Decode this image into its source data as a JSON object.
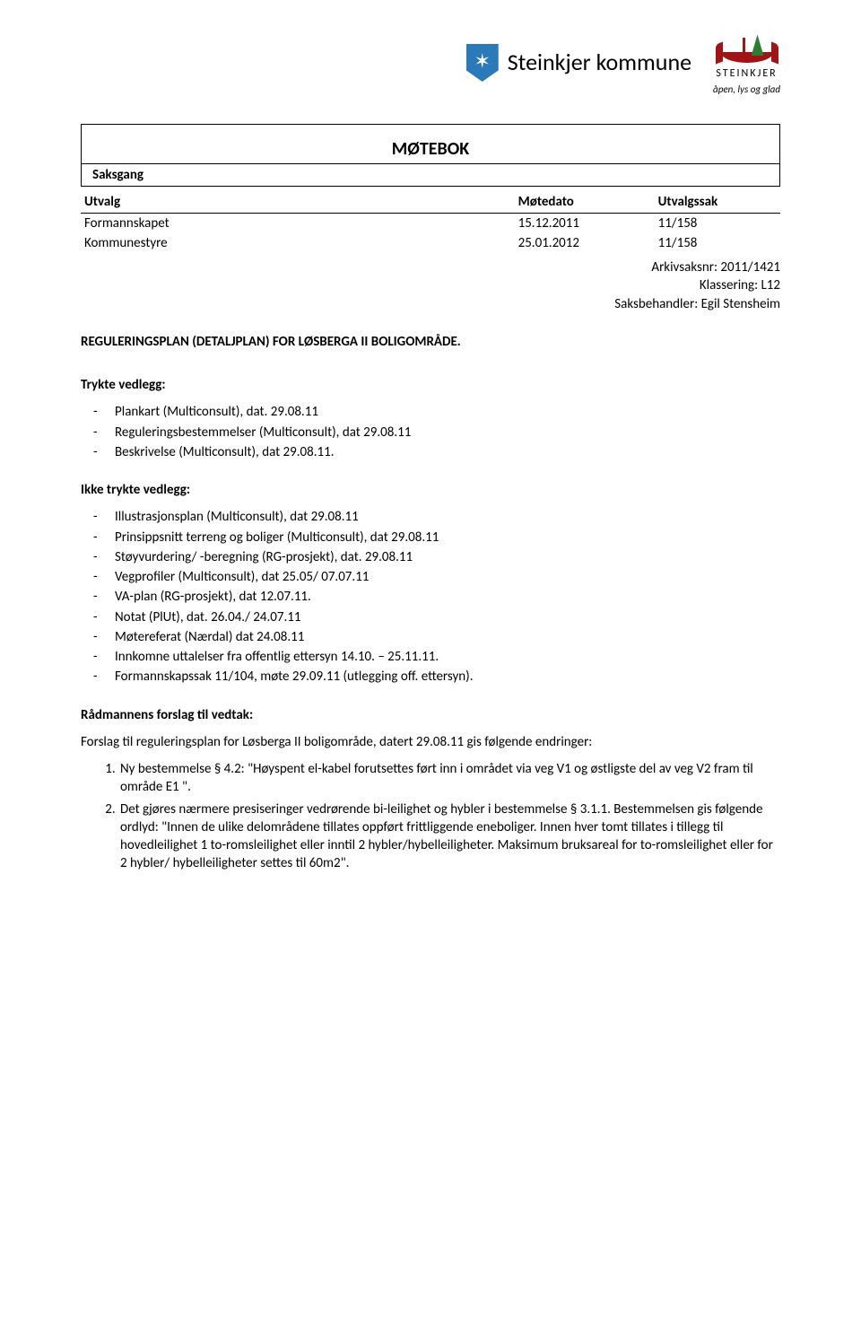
{
  "header": {
    "kommune_name": "Steinkjer kommune",
    "right_logo_title": "STEINKJER",
    "right_logo_slogan": "åpen, lys og glad"
  },
  "doc": {
    "title": "MØTEBOK",
    "subtitle": "Saksgang"
  },
  "meeting_table": {
    "headers": {
      "utvalg": "Utvalg",
      "dato": "Møtedato",
      "sak": "Utvalgssak"
    },
    "rows": [
      {
        "utvalg": "Formannskapet",
        "dato": "15.12.2011",
        "sak": "11/158"
      },
      {
        "utvalg": "Kommunestyre",
        "dato": "25.01.2012",
        "sak": "11/158"
      }
    ]
  },
  "meta": {
    "arkiv": "Arkivsaksnr: 2011/1421",
    "klassering": "Klassering: L12",
    "saksbehandler": "Saksbehandler: Egil Stensheim"
  },
  "case_title": "REGULERINGSPLAN (DETALJPLAN) FOR LØSBERGA II BOLIGOMRÅDE.",
  "trykte": {
    "heading": "Trykte vedlegg:",
    "items": [
      "Plankart (Multiconsult), dat. 29.08.11",
      "Reguleringsbestemmelser (Multiconsult), dat 29.08.11",
      "Beskrivelse (Multiconsult), dat 29.08.11."
    ]
  },
  "ikke_trykte": {
    "heading": "Ikke trykte vedlegg:",
    "items": [
      "Illustrasjonsplan (Multiconsult), dat 29.08.11",
      "Prinsippsnitt terreng og boliger (Multiconsult), dat 29.08.11",
      "Støyvurdering/ -beregning (RG-prosjekt), dat. 29.08.11",
      "Vegprofiler (Multiconsult), dat 25.05/ 07.07.11",
      "VA-plan (RG-prosjekt), dat 12.07.11.",
      "Notat (PlUt), dat. 26.04./ 24.07.11",
      "Møtereferat (Nærdal) dat 24.08.11",
      "Innkomne uttalelser fra offentlig ettersyn 14.10. – 25.11.11.",
      "Formannskapssak 11/104, møte 29.09.11 (utlegging off. ettersyn)."
    ]
  },
  "forslag": {
    "heading": "Rådmannens forslag til vedtak:",
    "intro": "Forslag til reguleringsplan for Løsberga II boligområde, datert 29.08.11 gis følgende endringer:",
    "items": [
      "Ny bestemmelse § 4.2: \"Høyspent el-kabel forutsettes ført inn i området via veg V1 og østligste del av veg V2 fram til område E1 \".",
      "Det gjøres nærmere presiseringer vedrørende bi-leilighet og hybler i bestemmelse § 3.1.1. Bestemmelsen gis følgende ordlyd: \"Innen de ulike delområdene tillates oppført frittliggende eneboliger. Innen hver tomt tillates i tillegg til hovedleilighet 1 to-romsleilighet eller inntil 2 hybler/hybelleiligheter. Maksimum bruksareal for to-romsleilighet eller for 2 hybler/ hybelleiligheter settes til 60m2\"."
    ]
  }
}
